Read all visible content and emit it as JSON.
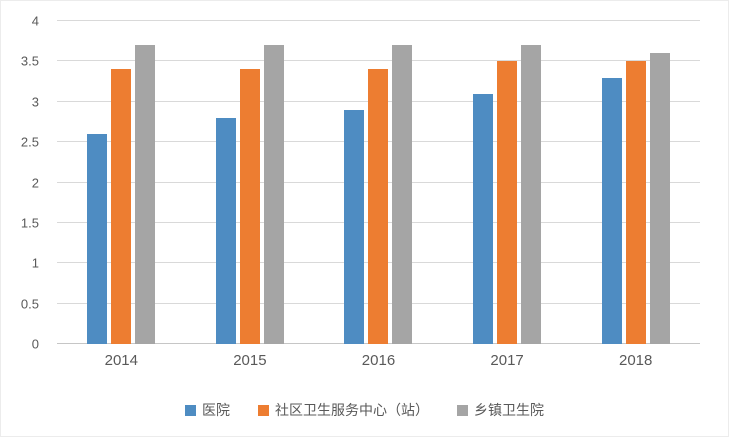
{
  "chart_data": {
    "type": "bar",
    "title": "",
    "categories": [
      "2014",
      "2015",
      "2016",
      "2017",
      "2018"
    ],
    "series": [
      {
        "name": "医院",
        "color": "#4e8cc2",
        "values": [
          2.6,
          2.8,
          2.9,
          3.1,
          3.3
        ]
      },
      {
        "name": "社区卫生服务中心（站）",
        "color": "#ed7d31",
        "values": [
          3.4,
          3.4,
          3.4,
          3.5,
          3.5
        ]
      },
      {
        "name": "乡镇卫生院",
        "color": "#a5a5a5",
        "values": [
          3.7,
          3.7,
          3.7,
          3.7,
          3.6
        ]
      }
    ],
    "ylim": [
      0,
      4
    ],
    "ytick_step": 0.5,
    "yticks": [
      "0",
      "0.5",
      "1",
      "1.5",
      "2",
      "2.5",
      "3",
      "3.5",
      "4"
    ],
    "xlabel": "",
    "ylabel": "",
    "grid": true,
    "legend_position": "bottom"
  },
  "colors": {
    "gridline": "#d9d9d9",
    "axis_text": "#595959",
    "background": "#ffffff"
  }
}
